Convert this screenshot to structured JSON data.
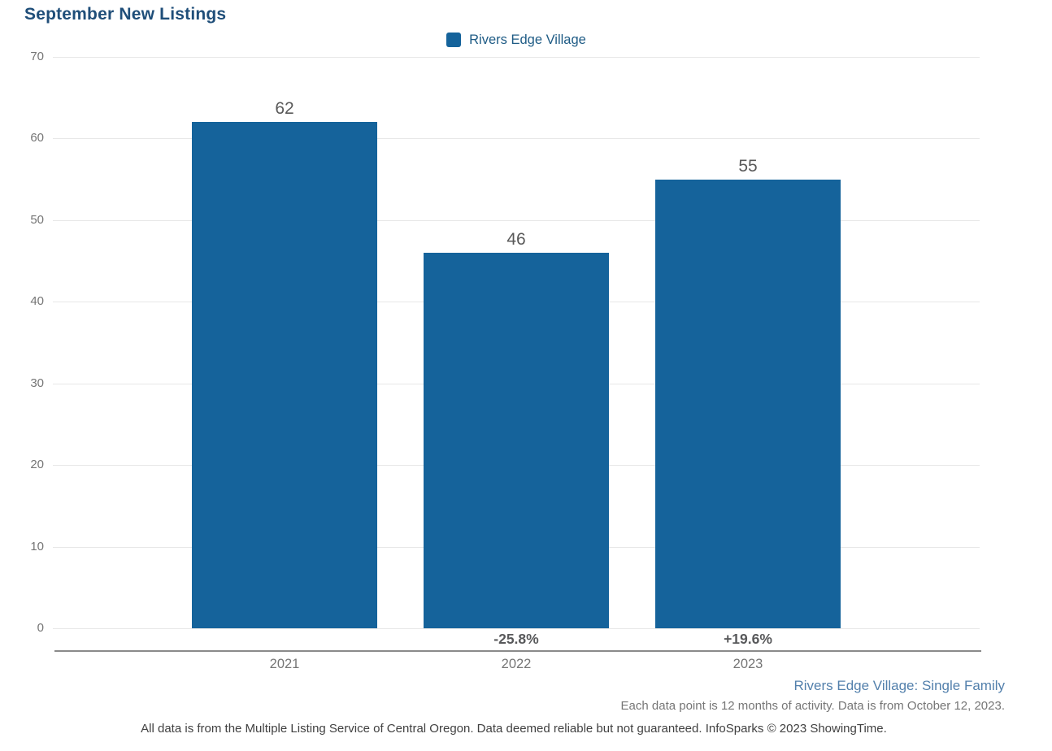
{
  "title": "September New Listings",
  "legend": {
    "label": "Rivers Edge Village",
    "color": "#15639b"
  },
  "chart_data": {
    "type": "bar",
    "title": "September New Listings",
    "categories": [
      "2021",
      "2022",
      "2023"
    ],
    "series": [
      {
        "name": "Rivers Edge Village",
        "values": [
          62,
          46,
          55
        ]
      }
    ],
    "bar_value_labels": [
      "62",
      "46",
      "55"
    ],
    "pct_change_labels": [
      "",
      "-25.8%",
      "+19.6%"
    ],
    "xlabel": "",
    "ylabel": "",
    "ylim": [
      0,
      70
    ],
    "yticks": [
      0,
      10,
      20,
      30,
      40,
      50,
      60,
      70
    ],
    "grid": true,
    "legend_position": "top-center",
    "bar_color": "#15639b"
  },
  "footer": {
    "series_note": "Rivers Edge Village: Single Family",
    "data_note": "Each data point is 12 months of activity. Data is from October 12, 2023.",
    "disclaimer": "All data is from the Multiple Listing Service of Central Oregon. Data deemed reliable but not guaranteed. InfoSparks © 2023 ShowingTime."
  }
}
